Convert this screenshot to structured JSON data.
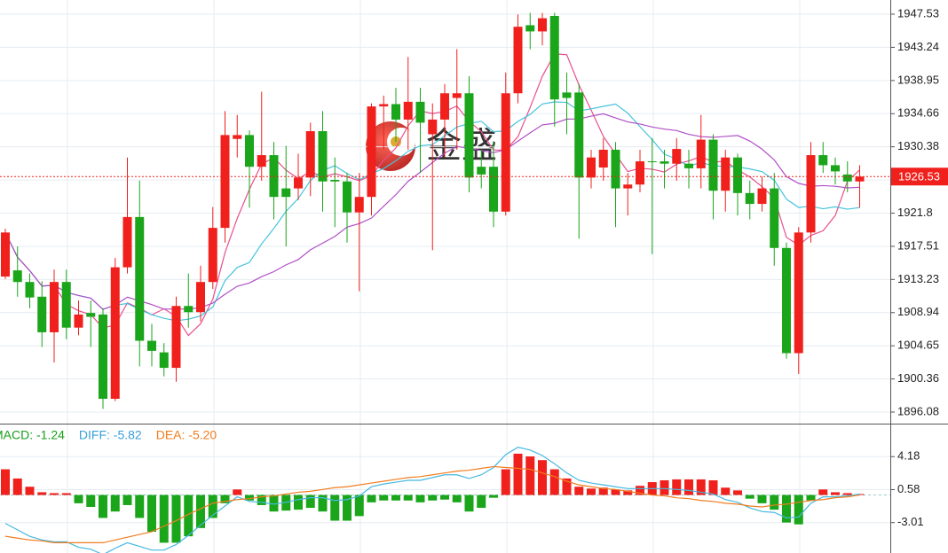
{
  "watermark": "金盛",
  "chart_data": [
    {
      "type": "candlestick",
      "open": [
        1913.6,
        1914.4,
        1912.9,
        1911,
        1906.4,
        1912.9,
        1907,
        1908.9,
        1908.7,
        1897.8,
        1914.8,
        1921.3,
        1905.3,
        1903.8,
        1901.8,
        1909.8,
        1909,
        1912.9,
        1919.9,
        1931.4,
        1931.9,
        1927.8,
        1929.3,
        1925,
        1925,
        1926.4,
        1932.4,
        1926.1,
        1925.9,
        1921.9,
        1923.9,
        1935.6,
        1935.9,
        1933.9,
        1936.2,
        1932,
        1933.9,
        1936.7,
        1937.3,
        1927.8,
        1927.8,
        1922,
        1937.3,
        1946.1,
        1945.3,
        1947.3,
        1937.4,
        1937.4,
        1926.4,
        1927.7,
        1930,
        1925,
        1925.5,
        1928.5,
        1928.5,
        1928.2,
        1928.2,
        1927.6,
        1931.3,
        1924.7,
        1929,
        1924.4,
        1923,
        1925,
        1917.3,
        1903.7,
        1919.3,
        1929.3,
        1928,
        1926.8,
        1925.9
      ],
      "high": [
        1919.8,
        1917.5,
        1914,
        1913,
        1914.5,
        1914.5,
        1910.5,
        1910.5,
        1909.5,
        1916,
        1929,
        1926,
        1907.5,
        1905,
        1911,
        1914,
        1915,
        1922.6,
        1935,
        1934.5,
        1932.5,
        1937.5,
        1931,
        1930.5,
        1929.5,
        1933.5,
        1935,
        1929,
        1927,
        1927,
        1936,
        1937,
        1938,
        1942,
        1938,
        1936,
        1938.5,
        1943,
        1939.5,
        1930,
        1931,
        1940,
        1947.5,
        1947.7,
        1947.7,
        1947.7,
        1940,
        1938.5,
        1930,
        1931.5,
        1931,
        1927,
        1930,
        1931.5,
        1930,
        1931.5,
        1930,
        1934.5,
        1932,
        1930,
        1929.5,
        1926,
        1926.5,
        1927,
        1918,
        1920,
        1931,
        1931,
        1929,
        1928.5,
        1928
      ],
      "low": [
        1913.3,
        1911,
        1909.5,
        1904.5,
        1902.5,
        1905.5,
        1906,
        1904.5,
        1896.5,
        1897.5,
        1914,
        1902,
        1902,
        1900.7,
        1900,
        1907,
        1907.8,
        1912,
        1918,
        1929,
        1922.5,
        1926,
        1921,
        1917.5,
        1923.5,
        1924,
        1922,
        1920,
        1918,
        1911.7,
        1921.5,
        1930,
        1931,
        1930,
        1927,
        1917,
        1929,
        1930,
        1924.5,
        1925,
        1920,
        1921.5,
        1936,
        1943,
        1943.5,
        1933,
        1932,
        1918.5,
        1925,
        1926,
        1920,
        1921.5,
        1924.5,
        1916.5,
        1925,
        1926,
        1925,
        1925,
        1921,
        1922,
        1921.5,
        1921,
        1922,
        1915,
        1903,
        1901,
        1918,
        1927,
        1925.5,
        1924.5,
        1922.5
      ],
      "close": [
        1919.3,
        1912.9,
        1910.9,
        1906.4,
        1912.9,
        1907,
        1908.7,
        1908.4,
        1897.8,
        1914.8,
        1921.3,
        1905.3,
        1904,
        1901.8,
        1909.8,
        1909,
        1912.9,
        1919.9,
        1931.9,
        1931.9,
        1927.8,
        1929.3,
        1923.9,
        1923.9,
        1926.4,
        1932.4,
        1925.9,
        1925.9,
        1921.9,
        1923.9,
        1935.6,
        1935.9,
        1933.9,
        1936.2,
        1933.5,
        1933.9,
        1937.3,
        1937.3,
        1926.4,
        1926.8,
        1922,
        1937.3,
        1945.9,
        1945.3,
        1947,
        1936.5,
        1936.7,
        1926.4,
        1929,
        1930,
        1925,
        1925.5,
        1928.5,
        1928.4,
        1928.2,
        1930.1,
        1927.6,
        1931.3,
        1924.7,
        1929,
        1924.4,
        1923,
        1925,
        1917.3,
        1903.7,
        1919.3,
        1929.3,
        1928,
        1927.2,
        1925.9,
        1926.53
      ],
      "up_color": "#f0201c",
      "down_color": "#1aa51a",
      "ma_colors": [
        "#e8508e",
        "#45c3dc",
        "#b04fc6"
      ],
      "ylim": [
        1894.59,
        1949.36
      ],
      "yticks": [
        1947.53,
        1943.24,
        1938.95,
        1934.66,
        1930.38,
        1926.09,
        1921.8,
        1917.51,
        1913.23,
        1908.94,
        1904.65,
        1900.36,
        1896.08
      ],
      "last_price": 1926.53,
      "grid": true
    },
    {
      "type": "macd",
      "legend": [
        {
          "text": "MACD: -1.24",
          "color": "#1a9e1a"
        },
        {
          "text": "DIFF: -5.82",
          "color": "#3a9fd8"
        },
        {
          "text": "DEA: -5.20",
          "color": "#f07d20"
        }
      ],
      "histogram": [
        2.8,
        1.8,
        0.9,
        0.3,
        0.2,
        0.2,
        -0.9,
        -1.3,
        -2.5,
        -1.8,
        -1.1,
        -2.5,
        -4.0,
        -5.2,
        -5.2,
        -4.5,
        -3.6,
        -2.5,
        -0.9,
        0.6,
        -0.6,
        -1.1,
        -1.8,
        -1.7,
        -1.6,
        -1.4,
        -1.8,
        -2.8,
        -2.8,
        -2.3,
        -0.8,
        -0.6,
        -0.6,
        -0.6,
        -0.8,
        -0.6,
        -0.5,
        -0.8,
        -1.8,
        -1.4,
        -0.3,
        2.8,
        4.5,
        4.2,
        3.8,
        2.8,
        1.8,
        0.9,
        0.7,
        0.8,
        0.6,
        0.5,
        1.0,
        1.4,
        1.6,
        1.7,
        1.7,
        1.7,
        1.6,
        0.8,
        0.5,
        -0.4,
        -0.9,
        -1.6,
        -3.0,
        -3.2,
        -0.6,
        0.6,
        0.3,
        0.2,
        0.1
      ],
      "up_color": "#f0201c",
      "down_color": "#1aa51a",
      "series": [
        {
          "color": "#45b8e0",
          "values": [
            -3.1,
            -3.8,
            -4.5,
            -4.9,
            -5.1,
            -5.1,
            -5.7,
            -5.9,
            -6.5,
            -5.8,
            -5.2,
            -5.6,
            -6.0,
            -6.0,
            -5.4,
            -4.4,
            -3.3,
            -2.2,
            -1.2,
            -0.2,
            -0.7,
            -0.8,
            -1.0,
            -0.8,
            -0.5,
            -0.3,
            -0.3,
            -0.6,
            -0.5,
            -0.1,
            0.9,
            1.2,
            1.4,
            1.6,
            1.6,
            1.9,
            2.2,
            2.2,
            1.8,
            2.2,
            3.0,
            4.4,
            5.2,
            4.9,
            4.3,
            3.4,
            2.4,
            1.6,
            1.3,
            1.1,
            0.9,
            0.7,
            0.7,
            0.7,
            0.7,
            0.6,
            0.5,
            0.3,
            0.1,
            -0.5,
            -0.8,
            -1.4,
            -1.8,
            -1.9,
            -2.5,
            -2.4,
            -0.9,
            -0.2,
            -0.2,
            -0.1,
            0.1
          ]
        },
        {
          "color": "#f07d20",
          "values": [
            -4.5,
            -4.7,
            -4.9,
            -5.0,
            -5.2,
            -5.2,
            -5.2,
            -5.2,
            -5.2,
            -4.9,
            -4.6,
            -4.3,
            -4.0,
            -3.4,
            -2.8,
            -2.1,
            -1.5,
            -0.9,
            -0.7,
            -0.5,
            -0.4,
            -0.2,
            -0.1,
            0.1,
            0.3,
            0.4,
            0.6,
            0.8,
            0.9,
            1.1,
            1.3,
            1.5,
            1.7,
            1.9,
            2.0,
            2.2,
            2.4,
            2.6,
            2.7,
            2.9,
            3.1,
            3.0,
            2.9,
            2.8,
            2.4,
            2.0,
            1.5,
            1.1,
            0.9,
            0.7,
            0.6,
            0.4,
            0.2,
            0.0,
            -0.1,
            -0.3,
            -0.4,
            -0.6,
            -0.7,
            -0.9,
            -1.0,
            -1.2,
            -1.3,
            -1.1,
            -1.0,
            -0.8,
            -0.6,
            -0.5,
            -0.3,
            -0.2,
            0.0
          ]
        }
      ],
      "ylim": [
        -6.32,
        7.68
      ],
      "yticks": [
        4.18,
        0.58,
        -3.01
      ],
      "grid": true
    }
  ]
}
